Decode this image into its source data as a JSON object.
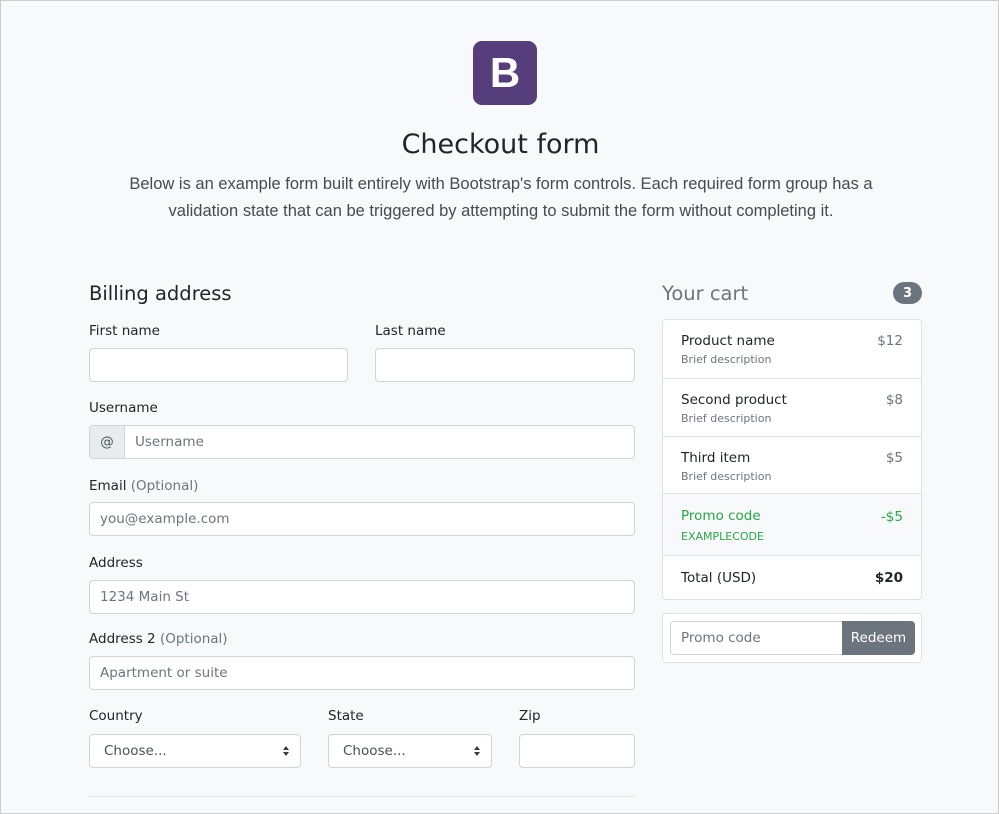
{
  "header": {
    "logo": "B",
    "title": "Checkout form",
    "lead": "Below is an example form built entirely with Bootstrap's form controls. Each required form group has a validation state that can be triggered by attempting to submit the form without completing it."
  },
  "billing": {
    "heading": "Billing address",
    "first_name": {
      "label": "First name",
      "value": ""
    },
    "last_name": {
      "label": "Last name",
      "value": ""
    },
    "username": {
      "label": "Username",
      "prefix": "@",
      "placeholder": "Username"
    },
    "email": {
      "label": "Email",
      "optional": "(Optional)",
      "placeholder": "you@example.com"
    },
    "address": {
      "label": "Address",
      "placeholder": "1234 Main St"
    },
    "address2": {
      "label": "Address 2",
      "optional": "(Optional)",
      "placeholder": "Apartment or suite"
    },
    "country": {
      "label": "Country",
      "selected": "Choose..."
    },
    "state": {
      "label": "State",
      "selected": "Choose..."
    },
    "zip": {
      "label": "Zip",
      "value": ""
    }
  },
  "cart": {
    "heading": "Your cart",
    "count": "3",
    "items": [
      {
        "name": "Product name",
        "desc": "Brief description",
        "price": "$12"
      },
      {
        "name": "Second product",
        "desc": "Brief description",
        "price": "$8"
      },
      {
        "name": "Third item",
        "desc": "Brief description",
        "price": "$5"
      }
    ],
    "promo": {
      "name": "Promo code",
      "code": "EXAMPLECODE",
      "price": "-$5"
    },
    "total": {
      "label": "Total (USD)",
      "value": "$20"
    },
    "promo_input": {
      "placeholder": "Promo code",
      "button": "Redeem"
    }
  },
  "colors": {
    "brand": "#563d7c",
    "success": "#28a745",
    "secondary": "#6c757d"
  }
}
